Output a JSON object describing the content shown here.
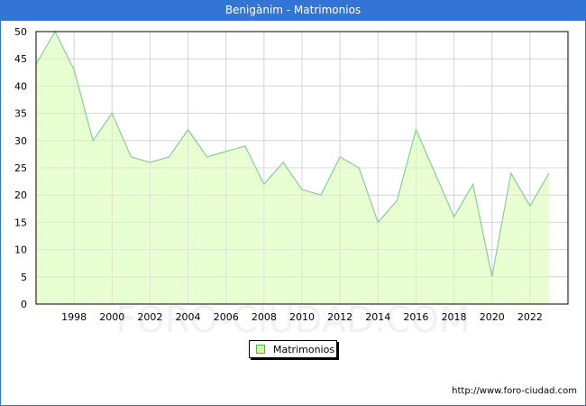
{
  "title": "Benigànim - Matrimonios",
  "footer_url": "http://www.foro-ciudad.com",
  "watermark": "FORO-CIUDAD.COM",
  "legend": {
    "label": "Matrimonios"
  },
  "colors": {
    "title_bar": "#3375d6",
    "fill": "#e6ffcc",
    "line": "#88cc99",
    "grid": "#d8d8d8"
  },
  "chart_data": {
    "type": "area",
    "title": "Benigànim - Matrimonios",
    "xlabel": "",
    "ylabel": "",
    "x": [
      1996,
      1997,
      1998,
      1999,
      2000,
      2001,
      2002,
      2003,
      2004,
      2005,
      2006,
      2007,
      2008,
      2009,
      2010,
      2011,
      2012,
      2013,
      2014,
      2015,
      2016,
      2017,
      2018,
      2019,
      2020,
      2021,
      2022,
      2023
    ],
    "series": [
      {
        "name": "Matrimonios",
        "values": [
          44,
          50,
          43,
          30,
          35,
          27,
          26,
          27,
          32,
          27,
          28,
          29,
          22,
          26,
          21,
          20,
          27,
          25,
          15,
          19,
          32,
          24,
          16,
          22,
          5,
          24,
          18,
          24
        ]
      }
    ],
    "x_ticks": [
      1998,
      2000,
      2002,
      2004,
      2006,
      2008,
      2010,
      2012,
      2014,
      2016,
      2018,
      2020,
      2022
    ],
    "y_ticks": [
      0,
      5,
      10,
      15,
      20,
      25,
      30,
      35,
      40,
      45,
      50
    ],
    "xlim": [
      1996,
      2024
    ],
    "ylim": [
      0,
      50
    ],
    "grid": true,
    "legend_position": "bottom-center"
  }
}
